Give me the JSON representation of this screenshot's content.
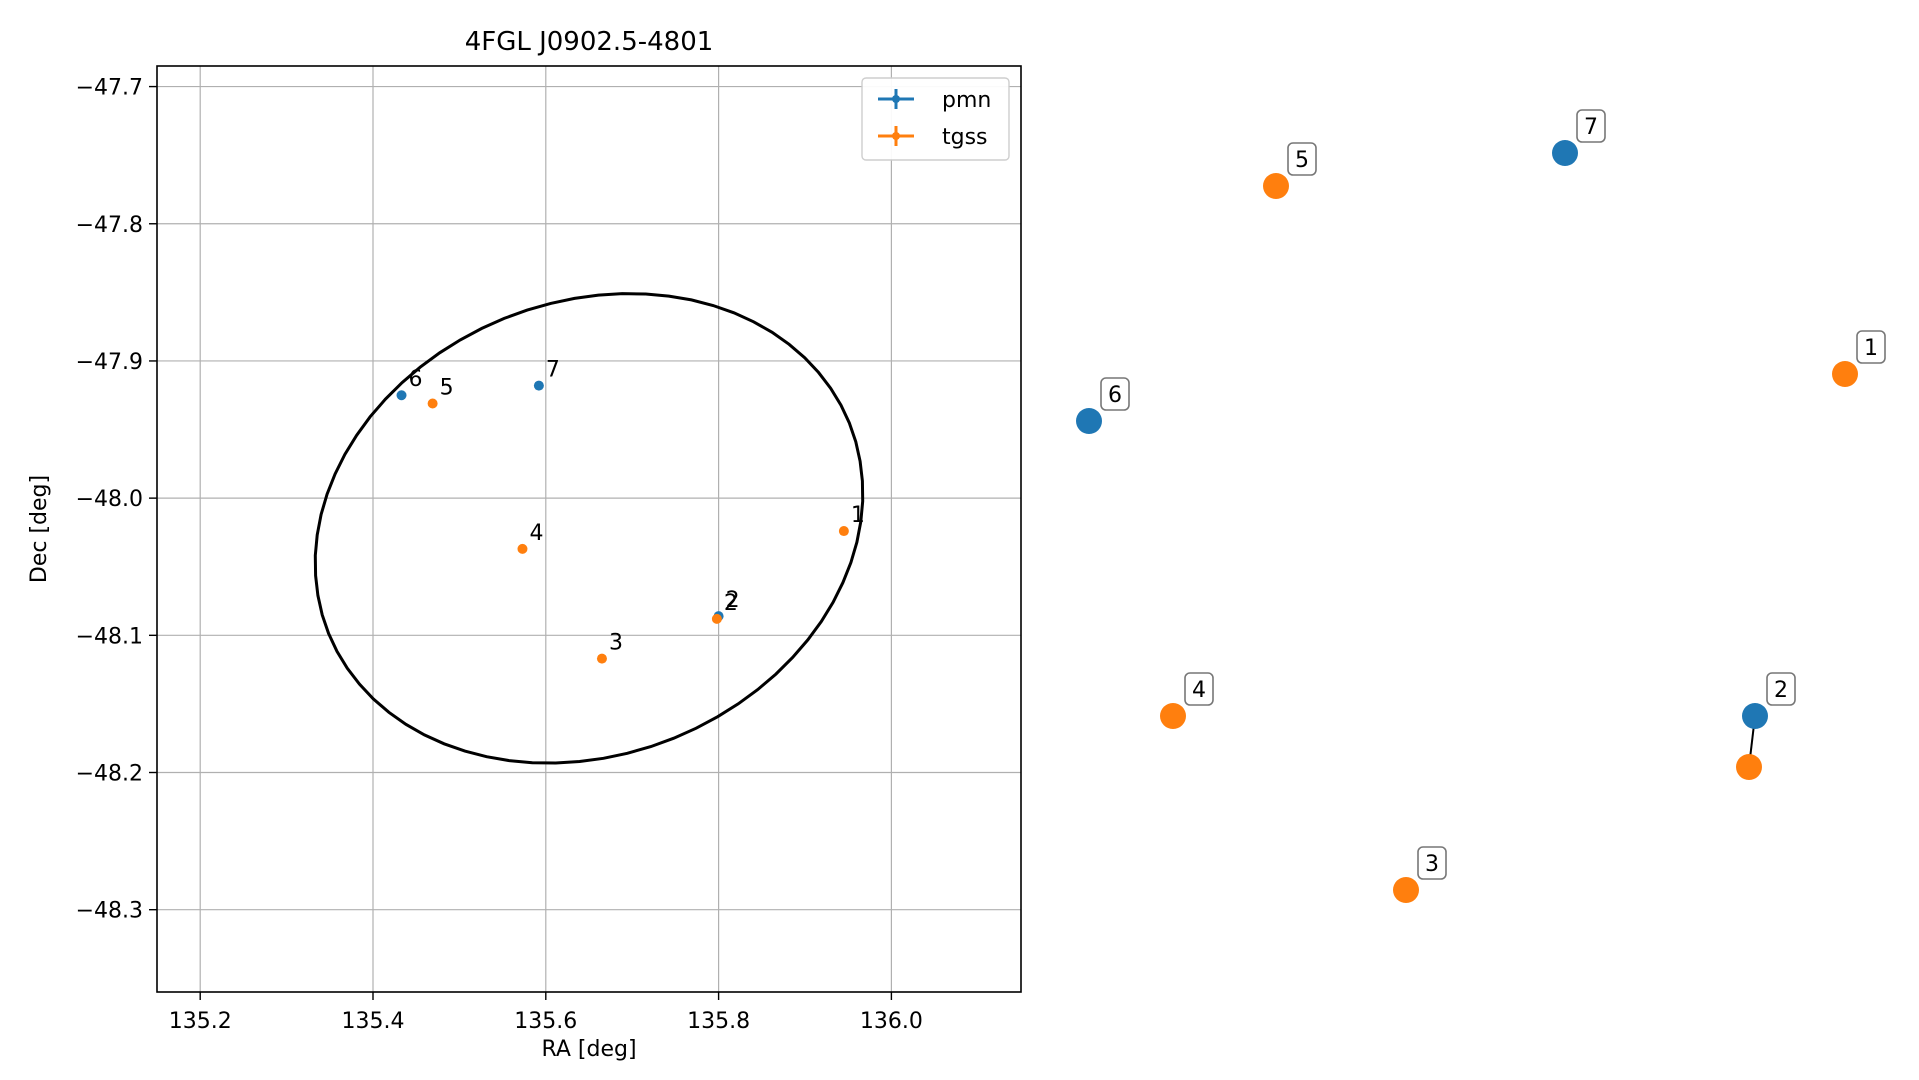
{
  "chart_data": [
    {
      "type": "scatter",
      "title": "4FGL J0902.5-4801",
      "xlabel": "RA [deg]",
      "ylabel": "Dec [deg]",
      "xlim": [
        135.15,
        136.15
      ],
      "ylim": [
        -48.36,
        -47.685
      ],
      "xticks": [
        135.2,
        135.4,
        135.6,
        135.8,
        136.0
      ],
      "xtick_labels": [
        "135.2",
        "135.4",
        "135.6",
        "135.8",
        "136.0"
      ],
      "yticks": [
        -47.7,
        -47.8,
        -47.9,
        -48.0,
        -48.1,
        -48.2,
        -48.3
      ],
      "ytick_labels": [
        "−47.7",
        "−47.8",
        "−47.9",
        "−48.0",
        "−48.1",
        "−48.2",
        "−48.3"
      ],
      "grid": true,
      "legend_position": "top-right",
      "ellipse": {
        "center": [
          135.65,
          -48.022
        ],
        "semi_x": 0.325,
        "semi_y": 0.165,
        "tilt_deg": -22
      },
      "series": [
        {
          "name": "pmn",
          "color": "#1f77b4",
          "points": [
            {
              "label": "2",
              "x": 135.8,
              "y": -48.086
            },
            {
              "label": "6",
              "x": 135.433,
              "y": -47.925
            },
            {
              "label": "7",
              "x": 135.592,
              "y": -47.918
            }
          ]
        },
        {
          "name": "tgss",
          "color": "#ff7f0e",
          "points": [
            {
              "label": "1",
              "x": 135.945,
              "y": -48.024
            },
            {
              "label": "2",
              "x": 135.798,
              "y": -48.088
            },
            {
              "label": "3",
              "x": 135.665,
              "y": -48.117
            },
            {
              "label": "4",
              "x": 135.573,
              "y": -48.037
            },
            {
              "label": "5",
              "x": 135.469,
              "y": -47.931
            }
          ]
        }
      ]
    },
    {
      "type": "scatter",
      "description_free": true,
      "points": [
        {
          "label": "1",
          "series": "tgss",
          "x": 135.945,
          "y": -48.024
        },
        {
          "label": "2",
          "series": "pmn",
          "x": 135.8,
          "y": -48.086
        },
        {
          "label": "2",
          "series": "tgss",
          "x": 135.798,
          "y": -48.088
        },
        {
          "label": "3",
          "series": "tgss",
          "x": 135.665,
          "y": -48.117
        },
        {
          "label": "4",
          "series": "tgss",
          "x": 135.573,
          "y": -48.037
        },
        {
          "label": "5",
          "series": "tgss",
          "x": 135.469,
          "y": -47.931
        },
        {
          "label": "6",
          "series": "pmn",
          "x": 135.433,
          "y": -47.925
        },
        {
          "label": "7",
          "series": "pmn",
          "x": 135.592,
          "y": -47.918
        }
      ]
    }
  ]
}
